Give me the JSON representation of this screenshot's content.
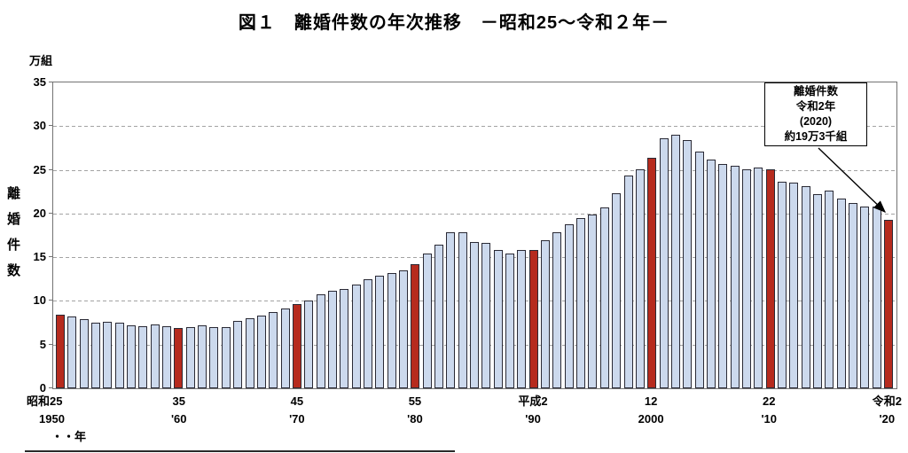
{
  "title": "図１　離婚件数の年次推移　－昭和25～令和２年－",
  "annotation": {
    "lines": [
      "離婚件数",
      "令和2年",
      "(2020)",
      "約19万3千組"
    ]
  },
  "chart_data": {
    "type": "bar",
    "title": "図１　離婚件数の年次推移　－昭和25～令和２年－",
    "ylabel": "離婚件数",
    "unit": "万組",
    "xlabel": "年",
    "ylim": [
      0,
      35
    ],
    "yticks": [
      0,
      5,
      10,
      15,
      20,
      25,
      30,
      35
    ],
    "grid": "dashed-horizontal",
    "x": [
      1950,
      1951,
      1952,
      1953,
      1954,
      1955,
      1956,
      1957,
      1958,
      1959,
      1960,
      1961,
      1962,
      1963,
      1964,
      1965,
      1966,
      1967,
      1968,
      1969,
      1970,
      1971,
      1972,
      1973,
      1974,
      1975,
      1976,
      1977,
      1978,
      1979,
      1980,
      1981,
      1982,
      1983,
      1984,
      1985,
      1986,
      1987,
      1988,
      1989,
      1990,
      1991,
      1992,
      1993,
      1994,
      1995,
      1996,
      1997,
      1998,
      1999,
      2000,
      2001,
      2002,
      2003,
      2004,
      2005,
      2006,
      2007,
      2008,
      2009,
      2010,
      2011,
      2012,
      2013,
      2014,
      2015,
      2016,
      2017,
      2018,
      2019,
      2020
    ],
    "values": [
      8.4,
      8.2,
      7.9,
      7.5,
      7.6,
      7.5,
      7.2,
      7.1,
      7.3,
      7.1,
      6.9,
      7.0,
      7.2,
      7.0,
      7.0,
      7.7,
      8.0,
      8.3,
      8.7,
      9.1,
      9.6,
      10.0,
      10.8,
      11.2,
      11.4,
      11.9,
      12.5,
      12.9,
      13.2,
      13.5,
      14.2,
      15.4,
      16.4,
      17.9,
      17.9,
      16.7,
      16.6,
      15.8,
      15.4,
      15.8,
      15.8,
      16.9,
      17.9,
      18.8,
      19.5,
      19.9,
      20.7,
      22.3,
      24.3,
      25.1,
      26.4,
      28.6,
      29.0,
      28.4,
      27.1,
      26.2,
      25.7,
      25.5,
      25.1,
      25.3,
      25.1,
      23.6,
      23.5,
      23.1,
      22.2,
      22.6,
      21.7,
      21.2,
      20.8,
      20.8,
      19.3
    ],
    "highlight_years": [
      1950,
      1960,
      1970,
      1980,
      1990,
      2000,
      2010,
      2020
    ],
    "bar_color": "#ccd9ed",
    "highlight_color": "#b62b1e",
    "bar_border_color": "#2a2a35",
    "x_tick_labels": [
      {
        "year": 1950,
        "lines": [
          "昭和25",
          "1950",
          "・・年"
        ],
        "style": "first"
      },
      {
        "year": 1960,
        "lines": [
          "35",
          "'60"
        ],
        "style": "center"
      },
      {
        "year": 1970,
        "lines": [
          "45",
          "'70"
        ],
        "style": "center"
      },
      {
        "year": 1980,
        "lines": [
          "55",
          "'80"
        ],
        "style": "center"
      },
      {
        "year": 1990,
        "lines": [
          "平成2",
          "'90"
        ],
        "style": "center"
      },
      {
        "year": 2000,
        "lines": [
          "12",
          "2000"
        ],
        "style": "center"
      },
      {
        "year": 2010,
        "lines": [
          "22",
          "'10"
        ],
        "style": "center"
      },
      {
        "year": 2020,
        "lines": [
          "令和2",
          "'20"
        ],
        "style": "center"
      }
    ],
    "legend": null
  }
}
